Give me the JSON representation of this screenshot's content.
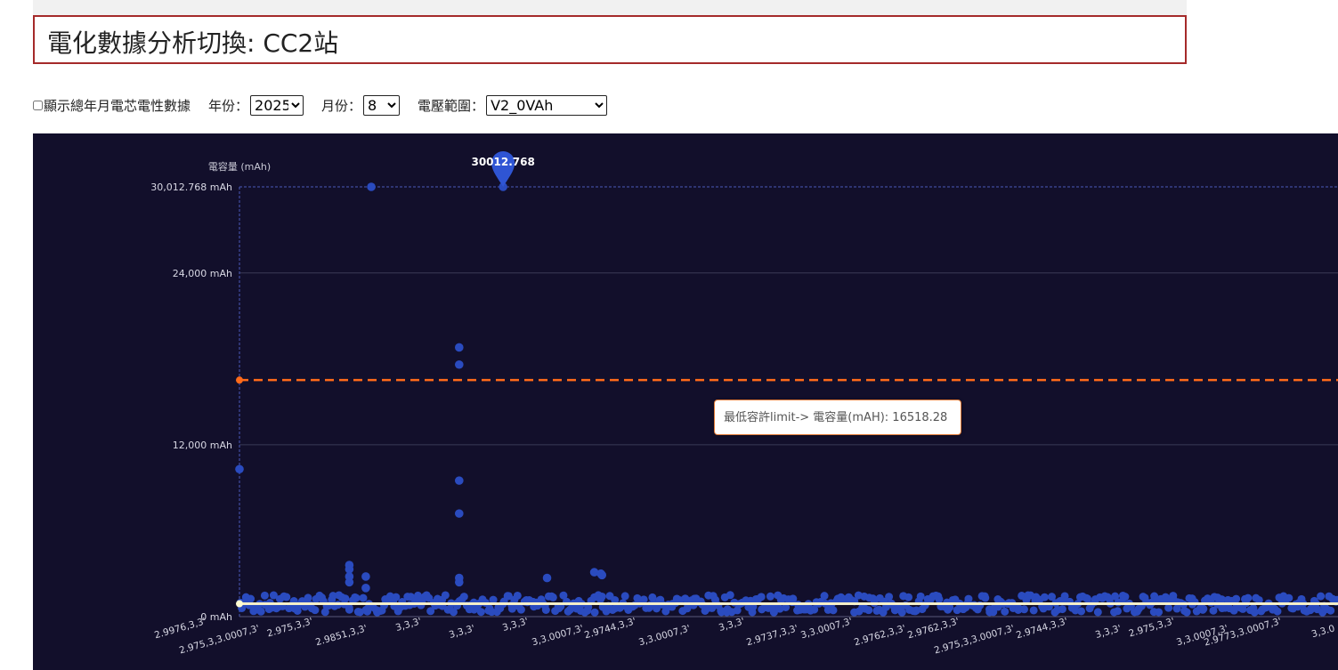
{
  "page": {
    "title": "電化數據分析切換: CC2站"
  },
  "controls": {
    "checkbox_label": "顯示總年月電芯電性數據",
    "year_label": "年份：",
    "year_value": "2025",
    "month_label": "月份：",
    "month_value": "8",
    "range_label": "電壓範圍：",
    "range_value": "V2_0VAh"
  },
  "tooltip": {
    "text": "最低容許limit-> 電容量(mAH): 16518.28"
  },
  "colors": {
    "background": "#120f2b",
    "points": "#2a4bbf",
    "average_line": "#f5efc9",
    "limit_line": "#ff6a1a",
    "marker_pin": "#2f55d4"
  },
  "chart_data": {
    "type": "scatter",
    "ylabel": "電容量 (mAh)",
    "ylim": [
      0,
      30012.768
    ],
    "y_ticks": [
      "0 mAh",
      "12,000 mAh",
      "24,000 mAh",
      "30,012.768 mAh"
    ],
    "y_tick_values": [
      0,
      12000,
      24000,
      30012.768
    ],
    "max_marker": {
      "label": "30012.768",
      "value": 30012.768
    },
    "limit_line": {
      "name": "最低容許limit",
      "value": 16518.28
    },
    "average_value": 900,
    "x_tick_labels": [
      "2.9976,3,3'",
      "2.975,3,3.0007,3'",
      "2.975,3,3'",
      "2.9851,3,3'",
      "3,3,3'",
      "3,3,3'",
      "3,3,3'",
      "3,3.0007,3'",
      "2.9744,3,3'",
      "3,3.0007,3'",
      "3,3,3'",
      "2.9737,3,3'",
      "3,3.0007,3'",
      "2.9762,3,3'",
      "2.9762,3,3'",
      "2.975,3,3.0007,3'",
      "2.9744,3,3'",
      "3,3,3'",
      "2.975,3,3'",
      "3,3.0007,3'",
      "2.9773,3.0007,3'",
      "3,3.0"
    ],
    "outliers": [
      {
        "x": 0,
        "y": 10300
      },
      {
        "x": 0.12,
        "y": 30012.768
      },
      {
        "x": 0.2,
        "y": 18800
      },
      {
        "x": 0.2,
        "y": 17600
      },
      {
        "x": 0.2,
        "y": 9500
      },
      {
        "x": 0.2,
        "y": 7200
      },
      {
        "x": 0.2,
        "y": 2700
      },
      {
        "x": 0.2,
        "y": 2400
      },
      {
        "x": 0.24,
        "y": 30012.768
      },
      {
        "x": 0.1,
        "y": 3600
      },
      {
        "x": 0.1,
        "y": 3300
      },
      {
        "x": 0.1,
        "y": 2800
      },
      {
        "x": 0.1,
        "y": 2400
      },
      {
        "x": 0.115,
        "y": 2800
      },
      {
        "x": 0.115,
        "y": 2000
      },
      {
        "x": 0.28,
        "y": 2700
      },
      {
        "x": 0.323,
        "y": 3100
      },
      {
        "x": 0.33,
        "y": 2900
      },
      {
        "x": 0.329,
        "y": 3000
      }
    ],
    "band": {
      "min": 0,
      "max": 2200,
      "typical": 900
    }
  }
}
